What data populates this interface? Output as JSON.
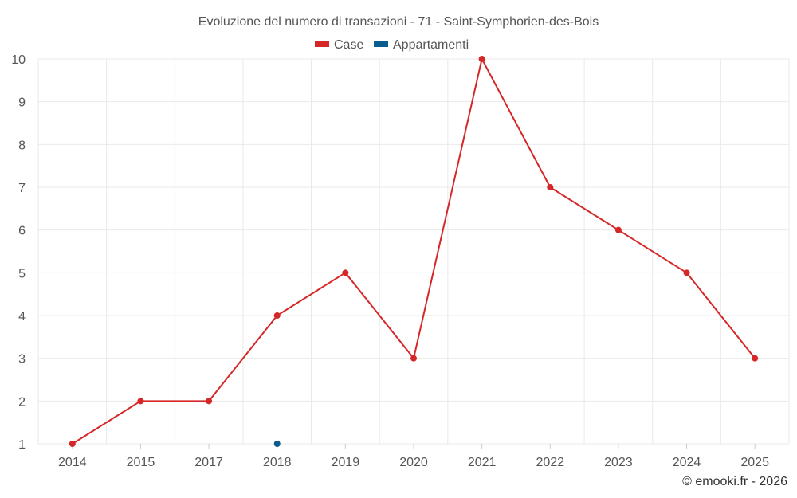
{
  "chart_data": {
    "type": "line",
    "title": "Evoluzione del numero di transazioni - 71 - Saint-Symphorien-des-Bois",
    "categories": [
      "2014",
      "2015",
      "2017",
      "2018",
      "2019",
      "2020",
      "2021",
      "2022",
      "2023",
      "2024",
      "2025"
    ],
    "series": [
      {
        "name": "Case",
        "color": "#d62728",
        "values": [
          1,
          2,
          2,
          4,
          5,
          3,
          10,
          7,
          6,
          5,
          3
        ]
      },
      {
        "name": "Appartamenti",
        "color": "#0a5c8f",
        "values": [
          null,
          null,
          null,
          1,
          null,
          null,
          null,
          null,
          null,
          null,
          null
        ]
      }
    ],
    "ylim": [
      1,
      10
    ],
    "yticks": [
      "1",
      "2",
      "3",
      "4",
      "5",
      "6",
      "7",
      "8",
      "9",
      "10"
    ],
    "xlabel": "",
    "ylabel": "",
    "grid": true,
    "legend_position": "top-center"
  },
  "credit": "© emooki.fr - 2026"
}
